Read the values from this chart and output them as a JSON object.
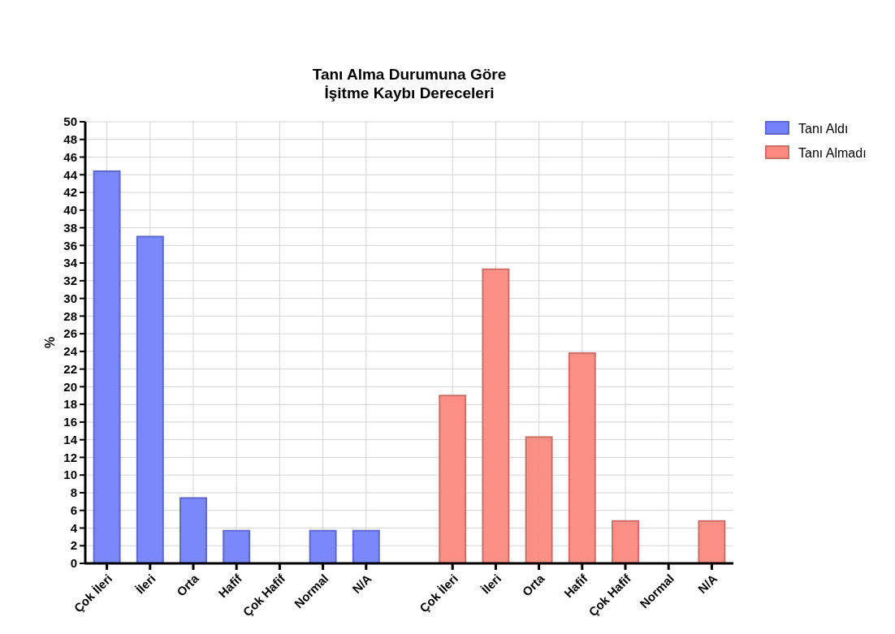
{
  "chart_data": {
    "type": "bar",
    "title": "Tanı Alma Durumuna Göre\nİşitme Kaybı Dereceleri",
    "ylabel": "%",
    "categories": [
      "Çok İleri",
      "İleri",
      "Orta",
      "Hafif",
      "Çok Hafif",
      "Normal",
      "N/A",
      null,
      "Çok İleri",
      "İleri",
      "Orta",
      "Hafif",
      "Çok Hafif",
      "Normal",
      "N/A"
    ],
    "series": [
      {
        "name": "Tanı Aldı",
        "color": "#7382fb",
        "values": [
          44.4,
          37.0,
          7.4,
          3.7,
          0,
          3.7,
          3.7,
          null,
          null,
          null,
          null,
          null,
          null,
          null,
          null
        ]
      },
      {
        "name": "Tanı Almadı",
        "color": "#fd8a80",
        "values": [
          null,
          null,
          null,
          null,
          null,
          null,
          null,
          null,
          19.0,
          33.3,
          14.3,
          23.8,
          4.8,
          0,
          4.8
        ]
      }
    ],
    "ylim": [
      0,
      50
    ],
    "yticks": [
      0,
      2,
      4,
      6,
      8,
      10,
      12,
      14,
      16,
      18,
      20,
      22,
      24,
      26,
      28,
      30,
      32,
      34,
      36,
      38,
      40,
      42,
      44,
      46,
      48,
      50
    ],
    "grid": true,
    "legend": "top right"
  }
}
